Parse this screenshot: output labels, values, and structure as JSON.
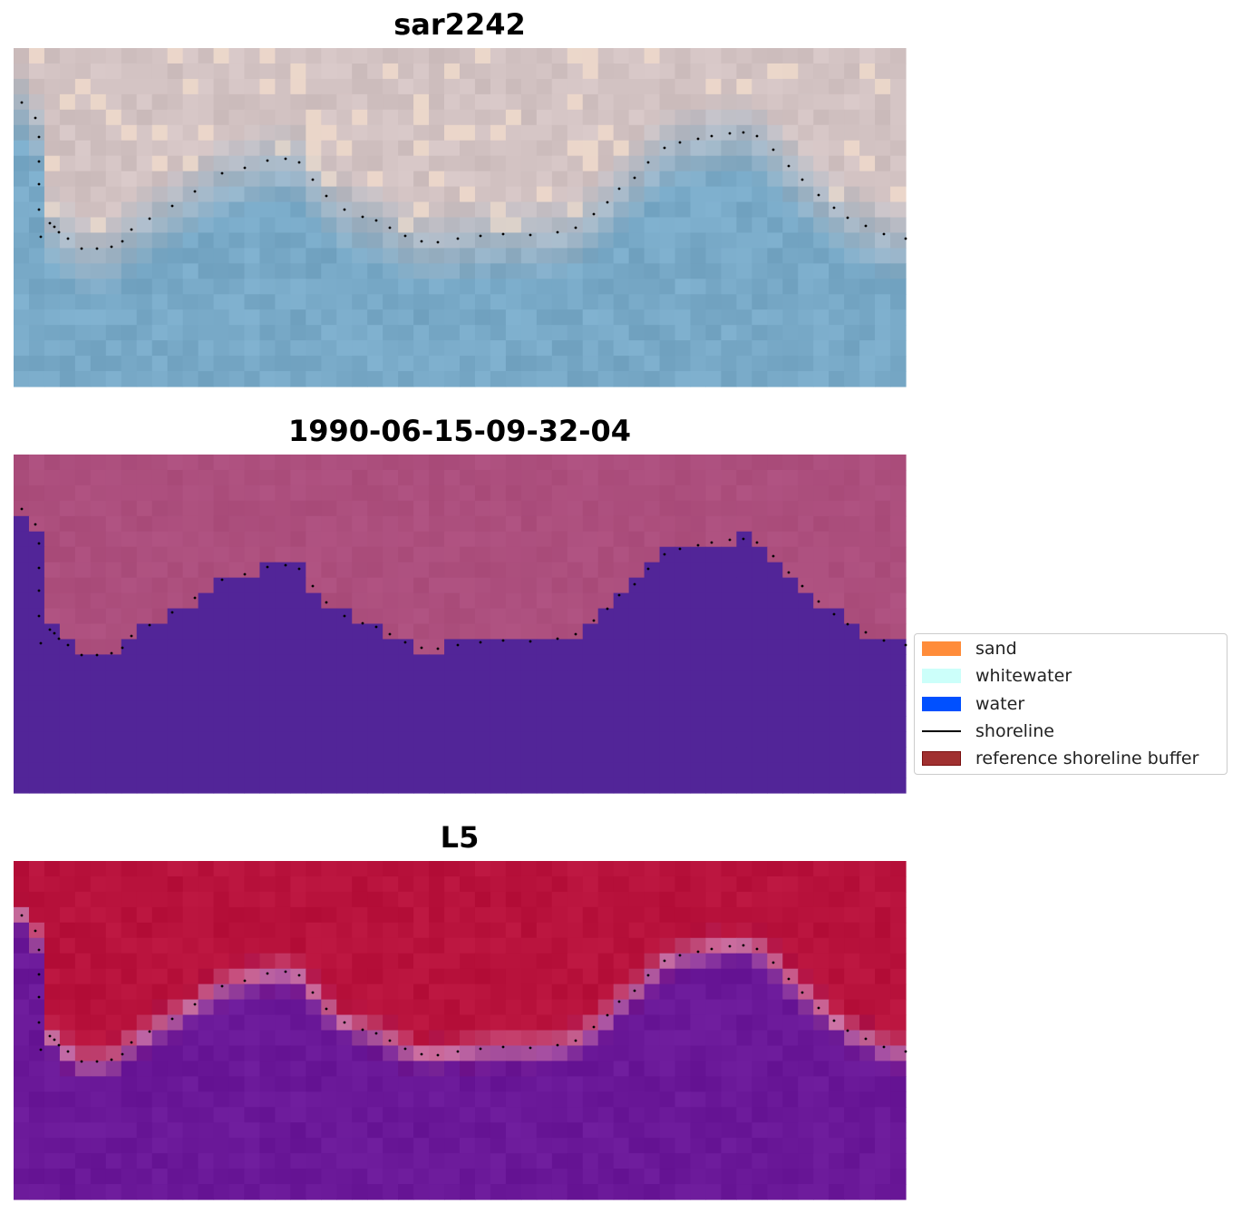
{
  "figure": {
    "panels": [
      {
        "title": "sar2242",
        "colormap": "rgb-composite"
      },
      {
        "title": "1990-06-15-09-32-04",
        "colormap": "classified-overlay"
      },
      {
        "title": "L5",
        "colormap": "probability"
      }
    ]
  },
  "legend": {
    "placement": "center-right",
    "items": [
      {
        "label": "sand",
        "kind": "patch",
        "color": "#ff8c3a",
        "border": "#ff8c3a"
      },
      {
        "label": "whitewater",
        "kind": "patch",
        "color": "#ccfffa",
        "border": "#ccfffa"
      },
      {
        "label": "water",
        "kind": "patch",
        "color": "#0050ff",
        "border": "#0050ff"
      },
      {
        "label": "shoreline",
        "kind": "line",
        "color": "#000000"
      },
      {
        "label": "reference shoreline buffer",
        "kind": "patch",
        "color": "#a03030",
        "border": "#7a1010"
      }
    ]
  },
  "colors": {
    "land_rgb": "#d3c3c3",
    "water_rgb": "#78a9c7",
    "overlay_land": "#a84a78",
    "overlay_water": "#522598",
    "prob_land": "#b8123c",
    "prob_water": "#6a1898",
    "shoreline_dots": "#000000"
  }
}
